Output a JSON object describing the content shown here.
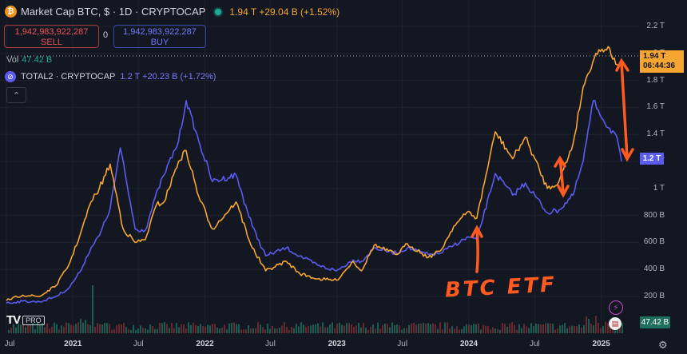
{
  "header": {
    "coin_letter": "₿",
    "title": "Market Cap BTC, $ · 1D · CRYPTOCAP",
    "quote": "1.94 T  +29.04 B (+1.52%)"
  },
  "trade": {
    "sell_value": "1,942,983,922,287",
    "sell_label": "SELL",
    "spread": "0",
    "buy_value": "1,942,983,922,287",
    "buy_label": "BUY"
  },
  "volume": {
    "label": "Vol",
    "value": "47.42 B"
  },
  "total2": {
    "icon": "⊘",
    "label": "TOTAL2 · CRYPTOCAP",
    "quote": "1.2 T  +20.23 B (+1.72%)"
  },
  "collapse_icon": "⌃",
  "price_axis": {
    "labels": [
      "2.2 T",
      "2 T",
      "1.8 T",
      "1.6 T",
      "1.4 T",
      "1.2 T",
      "1 T",
      "800 B",
      "600 B",
      "400 B",
      "200 B"
    ],
    "btc_tag_value": "1.94 T",
    "btc_tag_time": "06:44:36",
    "t2_tag_value": "1.2 T",
    "vol_tag_value": "47.42 B"
  },
  "time_axis": {
    "labels": [
      {
        "text": "Jul",
        "year": false
      },
      {
        "text": "2021",
        "year": true
      },
      {
        "text": "Jul",
        "year": false
      },
      {
        "text": "2022",
        "year": true
      },
      {
        "text": "Jul",
        "year": false
      },
      {
        "text": "2023",
        "year": true
      },
      {
        "text": "Jul",
        "year": false
      },
      {
        "text": "2024",
        "year": true
      },
      {
        "text": "Jul",
        "year": false
      },
      {
        "text": "2025",
        "year": true
      }
    ]
  },
  "branding": {
    "logo": "TV",
    "pro": "PRO"
  },
  "annotation": {
    "text": "BTC ETF"
  },
  "colors": {
    "background": "#131722",
    "btc_line": "#f7a531",
    "total2_line": "#5b5bf0",
    "annotation": "#ff5a1f",
    "volume_up": "#1f6f5f",
    "volume_down": "#7a2e35"
  },
  "chart_data": {
    "type": "line",
    "ylim": [
      0,
      2300
    ],
    "y_unit": "B",
    "series": [
      {
        "name": "Market Cap BTC, $ · 1D · CRYPTOCAP",
        "color": "#f7a531",
        "x": [
          "2020-07-01",
          "2020-08-15",
          "2020-10-01",
          "2020-11-15",
          "2020-12-20",
          "2021-01-20",
          "2021-02-20",
          "2021-03-15",
          "2021-04-14",
          "2021-05-20",
          "2021-06-22",
          "2021-07-20",
          "2021-08-20",
          "2021-09-10",
          "2021-10-20",
          "2021-11-10",
          "2021-12-15",
          "2022-01-22",
          "2022-03-28",
          "2022-05-12",
          "2022-06-18",
          "2022-08-14",
          "2022-09-20",
          "2022-11-09",
          "2022-12-31",
          "2023-02-15",
          "2023-03-10",
          "2023-04-14",
          "2023-06-15",
          "2023-07-15",
          "2023-09-11",
          "2023-10-15",
          "2023-11-20",
          "2023-12-31",
          "2024-01-23",
          "2024-03-14",
          "2024-05-01",
          "2024-06-05",
          "2024-08-05",
          "2024-09-06",
          "2024-10-15",
          "2024-11-12",
          "2024-12-17",
          "2025-01-20",
          "2025-02-10",
          "2025-02-26"
        ],
        "values": [
          170,
          210,
          200,
          280,
          430,
          650,
          900,
          1000,
          1180,
          700,
          600,
          620,
          880,
          900,
          1200,
          1280,
          940,
          700,
          900,
          560,
          390,
          460,
          370,
          330,
          320,
          460,
          390,
          580,
          510,
          590,
          490,
          540,
          720,
          830,
          780,
          1420,
          1220,
          1380,
          1000,
          1050,
          1330,
          1750,
          2000,
          2050,
          1920,
          1940
        ]
      },
      {
        "name": "TOTAL2 · CRYPTOCAP",
        "color": "#5b5bf0",
        "x": [
          "2020-07-01",
          "2020-08-15",
          "2020-10-01",
          "2020-11-15",
          "2020-12-20",
          "2021-01-20",
          "2021-02-20",
          "2021-03-15",
          "2021-04-14",
          "2021-05-12",
          "2021-06-22",
          "2021-07-20",
          "2021-08-25",
          "2021-09-10",
          "2021-10-20",
          "2021-11-10",
          "2021-12-15",
          "2022-01-22",
          "2022-03-28",
          "2022-05-12",
          "2022-06-18",
          "2022-08-14",
          "2022-09-20",
          "2022-11-09",
          "2022-12-31",
          "2023-02-15",
          "2023-03-10",
          "2023-04-14",
          "2023-06-15",
          "2023-07-15",
          "2023-09-11",
          "2023-10-15",
          "2023-11-20",
          "2023-12-31",
          "2024-01-23",
          "2024-03-14",
          "2024-05-01",
          "2024-06-05",
          "2024-08-05",
          "2024-09-06",
          "2024-10-15",
          "2024-11-12",
          "2024-12-10",
          "2025-01-20",
          "2025-02-10",
          "2025-02-26"
        ],
        "values": [
          150,
          165,
          160,
          200,
          260,
          380,
          560,
          650,
          850,
          1300,
          700,
          690,
          1000,
          1100,
          1350,
          1650,
          1350,
          1050,
          1100,
          720,
          500,
          560,
          500,
          430,
          390,
          470,
          460,
          560,
          520,
          560,
          510,
          520,
          580,
          640,
          620,
          1110,
          950,
          1040,
          820,
          840,
          950,
          1200,
          1650,
          1450,
          1400,
          1200
        ]
      }
    ],
    "annotations": [
      "BTC ETF"
    ]
  }
}
